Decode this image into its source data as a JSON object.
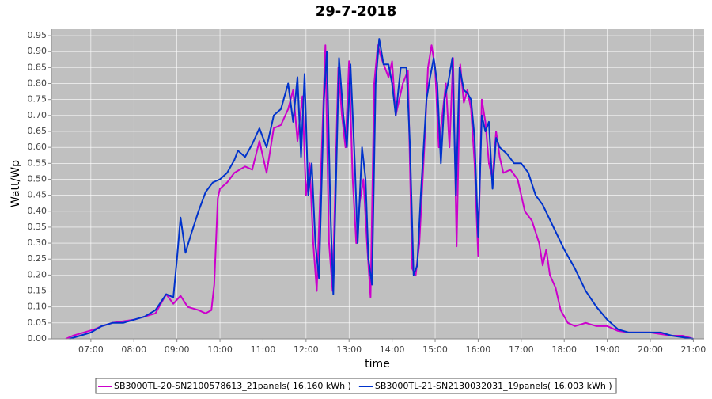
{
  "chart_data": {
    "type": "line",
    "title": "29-7-2018",
    "x_label": "time",
    "y_label": "Watt/Wp",
    "xlim": [
      "06:05",
      "21:15"
    ],
    "xticks": [
      "07:00",
      "08:00",
      "09:00",
      "10:00",
      "11:00",
      "12:00",
      "13:00",
      "14:00",
      "15:00",
      "16:00",
      "17:00",
      "18:00",
      "19:00",
      "20:00",
      "21:00"
    ],
    "ylim": [
      0,
      0.97
    ],
    "yticks": [
      {
        "value": 0,
        "label": "0.00"
      },
      0.05,
      {
        "value": 0.1,
        "label": "0.10"
      },
      0.15,
      {
        "value": 0.2,
        "label": "0.20"
      },
      0.25,
      {
        "value": 0.3,
        "label": "0.30"
      },
      0.35,
      {
        "value": 0.4,
        "label": "0.40"
      },
      0.45,
      {
        "value": 0.5,
        "label": "0.50"
      },
      0.55,
      {
        "value": 0.6,
        "label": "0.60"
      },
      0.65,
      {
        "value": 0.7,
        "label": "0.70"
      },
      0.75,
      {
        "value": 0.8,
        "label": "0.80"
      },
      0.85,
      {
        "value": 0.9,
        "label": "0.90"
      },
      0.95
    ],
    "grid": true,
    "legend": "bottom",
    "series": [
      {
        "name": "SB3000TL-20-SN2100578613_21panels( 16.160 kWh )",
        "color": "#cc00cc",
        "x": [
          "06:25",
          "06:35",
          "06:50",
          "07:05",
          "07:15",
          "07:30",
          "07:45",
          "08:00",
          "08:15",
          "08:30",
          "08:45",
          "08:55",
          "09:05",
          "09:15",
          "09:30",
          "09:40",
          "09:48",
          "09:52",
          "09:57",
          "10:00",
          "10:10",
          "10:20",
          "10:35",
          "10:45",
          "10:55",
          "11:05",
          "11:15",
          "11:25",
          "11:35",
          "11:42",
          "11:48",
          "11:55",
          "12:00",
          "12:05",
          "12:10",
          "12:15",
          "12:22",
          "12:27",
          "12:32",
          "12:37",
          "12:45",
          "12:50",
          "12:55",
          "13:00",
          "13:05",
          "13:10",
          "13:15",
          "13:20",
          "13:25",
          "13:30",
          "13:35",
          "13:40",
          "13:45",
          "13:55",
          "14:00",
          "14:05",
          "14:10",
          "14:15",
          "14:22",
          "14:28",
          "14:33",
          "14:38",
          "14:45",
          "14:50",
          "14:55",
          "15:00",
          "15:05",
          "15:10",
          "15:15",
          "15:20",
          "15:25",
          "15:30",
          "15:35",
          "15:40",
          "15:45",
          "15:50",
          "15:55",
          "16:00",
          "16:05",
          "16:10",
          "16:15",
          "16:20",
          "16:25",
          "16:30",
          "16:35",
          "16:45",
          "16:55",
          "17:05",
          "17:15",
          "17:25",
          "17:30",
          "17:35",
          "17:40",
          "17:48",
          "17:55",
          "18:05",
          "18:15",
          "18:30",
          "18:45",
          "19:00",
          "19:15",
          "19:30",
          "20:00",
          "20:15",
          "20:30",
          "20:45",
          "21:00"
        ],
        "values": [
          0.0,
          0.01,
          0.02,
          0.03,
          0.04,
          0.05,
          0.055,
          0.06,
          0.07,
          0.08,
          0.14,
          0.11,
          0.135,
          0.1,
          0.09,
          0.08,
          0.09,
          0.17,
          0.44,
          0.47,
          0.49,
          0.52,
          0.54,
          0.53,
          0.62,
          0.52,
          0.66,
          0.67,
          0.72,
          0.78,
          0.62,
          0.76,
          0.45,
          0.55,
          0.3,
          0.15,
          0.6,
          0.92,
          0.3,
          0.15,
          0.85,
          0.7,
          0.6,
          0.87,
          0.5,
          0.3,
          0.43,
          0.5,
          0.3,
          0.13,
          0.8,
          0.92,
          0.88,
          0.82,
          0.87,
          0.7,
          0.75,
          0.8,
          0.84,
          0.22,
          0.2,
          0.3,
          0.6,
          0.85,
          0.92,
          0.85,
          0.6,
          0.7,
          0.8,
          0.6,
          0.88,
          0.29,
          0.86,
          0.74,
          0.78,
          0.72,
          0.55,
          0.26,
          0.75,
          0.68,
          0.55,
          0.5,
          0.65,
          0.57,
          0.52,
          0.53,
          0.5,
          0.4,
          0.37,
          0.3,
          0.23,
          0.28,
          0.2,
          0.16,
          0.09,
          0.05,
          0.04,
          0.05,
          0.04,
          0.04,
          0.025,
          0.02,
          0.02,
          0.015,
          0.01,
          0.01,
          0.0
        ]
      },
      {
        "name": "SB3000TL-21-SN2130032031_19panels( 16.003 kWh )",
        "color": "#0033cc",
        "x": [
          "06:30",
          "06:45",
          "07:00",
          "07:15",
          "07:30",
          "07:45",
          "08:00",
          "08:15",
          "08:30",
          "08:45",
          "08:55",
          "09:00",
          "09:05",
          "09:12",
          "09:20",
          "09:30",
          "09:40",
          "09:50",
          "10:00",
          "10:10",
          "10:20",
          "10:25",
          "10:35",
          "10:45",
          "10:55",
          "11:05",
          "11:15",
          "11:25",
          "11:35",
          "11:42",
          "11:48",
          "11:53",
          "11:58",
          "12:03",
          "12:08",
          "12:13",
          "12:18",
          "12:25",
          "12:29",
          "12:34",
          "12:38",
          "12:46",
          "12:52",
          "12:57",
          "13:02",
          "13:08",
          "13:12",
          "13:18",
          "13:23",
          "13:27",
          "13:32",
          "13:37",
          "13:42",
          "13:48",
          "13:55",
          "14:00",
          "14:05",
          "14:12",
          "14:20",
          "14:25",
          "14:30",
          "14:35",
          "14:40",
          "14:48",
          "14:53",
          "14:58",
          "15:03",
          "15:08",
          "15:13",
          "15:18",
          "15:24",
          "15:29",
          "15:34",
          "15:40",
          "15:45",
          "15:50",
          "15:55",
          "16:00",
          "16:05",
          "16:10",
          "16:15",
          "16:20",
          "16:25",
          "16:30",
          "16:40",
          "16:50",
          "17:00",
          "17:10",
          "17:20",
          "17:30",
          "17:45",
          "18:00",
          "18:15",
          "18:30",
          "18:45",
          "19:00",
          "19:15",
          "19:30",
          "19:45",
          "20:00",
          "20:15",
          "20:30",
          "20:45",
          "21:00"
        ],
        "values": [
          0.0,
          0.01,
          0.02,
          0.04,
          0.05,
          0.05,
          0.06,
          0.07,
          0.09,
          0.14,
          0.13,
          0.25,
          0.38,
          0.27,
          0.33,
          0.4,
          0.46,
          0.49,
          0.5,
          0.52,
          0.56,
          0.59,
          0.57,
          0.61,
          0.66,
          0.6,
          0.7,
          0.72,
          0.8,
          0.68,
          0.82,
          0.57,
          0.83,
          0.45,
          0.55,
          0.3,
          0.19,
          0.75,
          0.9,
          0.4,
          0.14,
          0.88,
          0.7,
          0.6,
          0.86,
          0.55,
          0.3,
          0.6,
          0.5,
          0.25,
          0.17,
          0.8,
          0.94,
          0.86,
          0.86,
          0.8,
          0.7,
          0.85,
          0.85,
          0.6,
          0.2,
          0.23,
          0.45,
          0.75,
          0.82,
          0.88,
          0.8,
          0.55,
          0.75,
          0.8,
          0.88,
          0.45,
          0.85,
          0.78,
          0.77,
          0.75,
          0.63,
          0.32,
          0.7,
          0.65,
          0.68,
          0.47,
          0.63,
          0.6,
          0.58,
          0.55,
          0.55,
          0.52,
          0.45,
          0.42,
          0.35,
          0.28,
          0.22,
          0.15,
          0.1,
          0.06,
          0.03,
          0.02,
          0.02,
          0.02,
          0.02,
          0.01,
          0.005,
          0.0
        ]
      }
    ]
  }
}
